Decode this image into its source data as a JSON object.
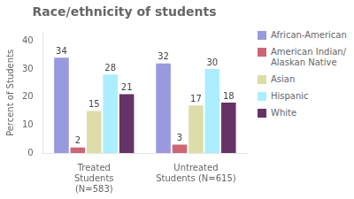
{
  "chart_data": {
    "type": "bar",
    "title": "Race/ethnicity of students",
    "ylabel": "Percent of Students",
    "categories": [
      "Treated\nStudents\n(N=583)",
      "Untreated\nStudents (N=615)"
    ],
    "series": [
      {
        "name": "African-American",
        "color": "#9999dd",
        "values": [
          34,
          32
        ]
      },
      {
        "name": "American Indian/\nAlaskan Native",
        "color": "#cc6677",
        "values": [
          2,
          3
        ]
      },
      {
        "name": "Asian",
        "color": "#ddddaa",
        "values": [
          15,
          17
        ]
      },
      {
        "name": "Hispanic",
        "color": "#aaeeff",
        "values": [
          28,
          30
        ]
      },
      {
        "name": "White",
        "color": "#663366",
        "values": [
          21,
          18
        ]
      }
    ],
    "ylim": [
      0,
      43
    ],
    "yticks": [
      0,
      10,
      20,
      30,
      40
    ],
    "grid": false,
    "legend": "right",
    "data_labels": true
  }
}
